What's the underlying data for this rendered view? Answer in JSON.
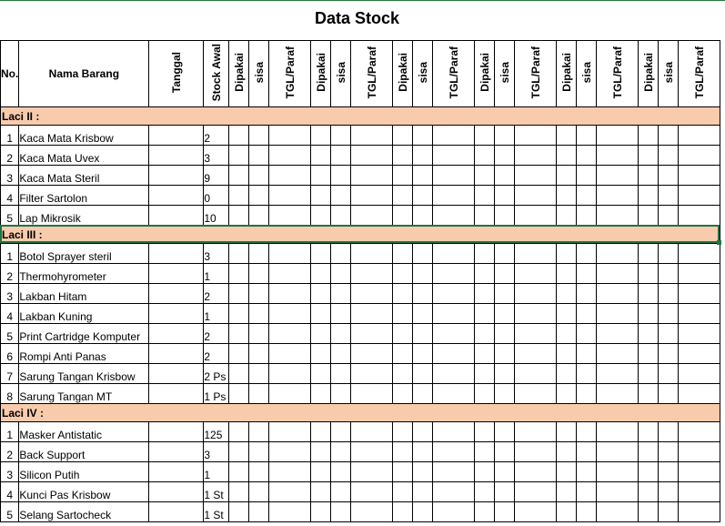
{
  "title": "Data Stock",
  "headers": {
    "no": "No.",
    "nama_barang": "Nama Barang",
    "tanggal": "Tanggal",
    "stock_awal": "Stock Awal",
    "dipakai": "Dipakai",
    "sisa": "sisa",
    "tgl_paraf": "TGL/Paraf"
  },
  "sections": [
    {
      "label": "Laci II  :",
      "items": [
        {
          "no": "1",
          "name": "Kaca Mata Krisbow",
          "stock": "2"
        },
        {
          "no": "2",
          "name": "Kaca Mata Uvex",
          "stock": "3"
        },
        {
          "no": "3",
          "name": "Kaca Mata Steril",
          "stock": "9"
        },
        {
          "no": "4",
          "name": "Filter Sartolon",
          "stock": "0"
        },
        {
          "no": "5",
          "name": "Lap Mikrosik",
          "stock": "10"
        }
      ]
    },
    {
      "label": "Laci III  :",
      "items": [
        {
          "no": "1",
          "name": "Botol Sprayer steril",
          "stock": "3"
        },
        {
          "no": "2",
          "name": "Thermohyrometer",
          "stock": "1"
        },
        {
          "no": "3",
          "name": "Lakban Hitam",
          "stock": "2"
        },
        {
          "no": "4",
          "name": "Lakban Kuning",
          "stock": "1"
        },
        {
          "no": "5",
          "name": "Print Cartridge Komputer",
          "stock": "2"
        },
        {
          "no": "6",
          "name": "Rompi Anti Panas",
          "stock": "2"
        },
        {
          "no": "7",
          "name": "Sarung Tangan Krisbow",
          "stock": "2 Ps"
        },
        {
          "no": "8",
          "name": "Sarung Tangan MT",
          "stock": "1 Ps"
        }
      ]
    },
    {
      "label": "Laci IV  :",
      "items": [
        {
          "no": "1",
          "name": "Masker Antistatic",
          "stock": "125"
        },
        {
          "no": "2",
          "name": "Back Support",
          "stock": "3"
        },
        {
          "no": "3",
          "name": "Silicon Putih",
          "stock": "1"
        },
        {
          "no": "4",
          "name": "Kunci Pas Krisbow",
          "stock": "1 St"
        },
        {
          "no": "5",
          "name": "Selang Sartocheck",
          "stock": "1 St"
        }
      ]
    }
  ]
}
